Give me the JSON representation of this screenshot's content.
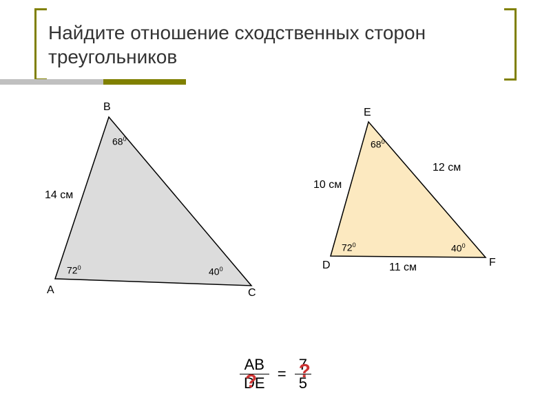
{
  "title": "Найдите отношение сходственных сторон треугольников",
  "bar_colors": {
    "gray": "#c0c0c0",
    "olive": "#808000"
  },
  "triangle1": {
    "fill": "#dcdcdc",
    "vertices": {
      "A": "A",
      "B": "B",
      "C": "C"
    },
    "points": {
      "A": [
        80,
        250
      ],
      "B": [
        158,
        15
      ],
      "C": [
        365,
        260
      ]
    },
    "angles": {
      "B": "68",
      "A": "72",
      "C": "40"
    },
    "sides": {
      "AB": "14 см"
    }
  },
  "triangle2": {
    "fill": "#fce9c0",
    "vertices": {
      "D": "D",
      "E": "E",
      "F": "F"
    },
    "points": {
      "D": [
        480,
        217
      ],
      "E": [
        535,
        22
      ],
      "F": [
        705,
        219
      ]
    },
    "angles": {
      "E": "68",
      "D": "72",
      "F": "40"
    },
    "sides": {
      "DE": "10 см",
      "EF": "12 см",
      "DF": "11 см"
    }
  },
  "equation": {
    "numerator1": "AB",
    "denominator1": "DE",
    "eq": "=",
    "numerator2": "7",
    "denominator2": "5",
    "question1": "?",
    "question2": "?"
  }
}
